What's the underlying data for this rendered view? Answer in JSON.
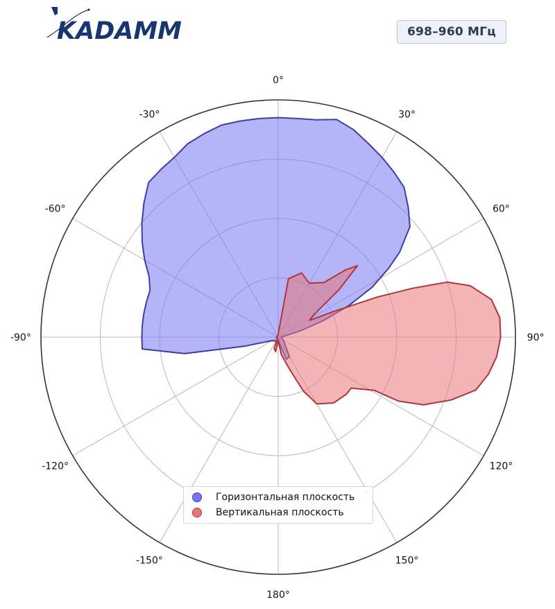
{
  "brand": {
    "logo_text": "KADAMM",
    "color": "#17356f"
  },
  "header": {
    "frequency_label": "698–960 МГц"
  },
  "chart_data": {
    "type": "polar",
    "angle_zero": "top",
    "angle_direction": "clockwise",
    "angle_ticks": [
      0,
      30,
      60,
      90,
      120,
      150,
      180,
      -150,
      -120,
      -90,
      -60,
      -30
    ],
    "angle_tick_labels": [
      "0°",
      "30°",
      "60°",
      "90°",
      "120°",
      "150°",
      "180°",
      "-150°",
      "-120°",
      "-90°",
      "-60°",
      "-30°"
    ],
    "r_range": [
      0,
      4
    ],
    "r_gridlines": [
      1,
      2,
      3
    ],
    "grid": true,
    "legend_position": "bottom-center",
    "series": [
      {
        "name": "Горизонтальная плоскость",
        "color": "#7777ee",
        "stroke": "#3d3da8",
        "points": [
          [
            -180,
            0.05
          ],
          [
            -150,
            0.08
          ],
          [
            -120,
            0.12
          ],
          [
            -105,
            0.6
          ],
          [
            -100,
            1.6
          ],
          [
            -95,
            2.3
          ],
          [
            -90,
            2.3
          ],
          [
            -85,
            2.3
          ],
          [
            -80,
            2.3
          ],
          [
            -75,
            2.3
          ],
          [
            -70,
            2.3
          ],
          [
            -65,
            2.4
          ],
          [
            -60,
            2.6
          ],
          [
            -55,
            2.8
          ],
          [
            -50,
            3.0
          ],
          [
            -45,
            3.2
          ],
          [
            -40,
            3.4
          ],
          [
            -35,
            3.45
          ],
          [
            -30,
            3.5
          ],
          [
            -25,
            3.6
          ],
          [
            -20,
            3.65
          ],
          [
            -15,
            3.7
          ],
          [
            -10,
            3.7
          ],
          [
            -5,
            3.7
          ],
          [
            0,
            3.7
          ],
          [
            5,
            3.7
          ],
          [
            10,
            3.72
          ],
          [
            15,
            3.8
          ],
          [
            20,
            3.72
          ],
          [
            25,
            3.6
          ],
          [
            30,
            3.5
          ],
          [
            35,
            3.4
          ],
          [
            40,
            3.3
          ],
          [
            45,
            3.1
          ],
          [
            50,
            2.9
          ],
          [
            55,
            2.5
          ],
          [
            58,
            2.2
          ],
          [
            62,
            1.8
          ],
          [
            66,
            1.3
          ],
          [
            70,
            0.8
          ],
          [
            74,
            0.4
          ],
          [
            78,
            0.15
          ],
          [
            90,
            0.05
          ],
          [
            120,
            0.1
          ],
          [
            150,
            0.38
          ],
          [
            160,
            0.4
          ],
          [
            170,
            0.1
          ],
          [
            180,
            0.05
          ]
        ]
      },
      {
        "name": "Вертикальная плоскость",
        "color": "#e8767c",
        "stroke": "#b0343c",
        "points": [
          [
            -180,
            0.05
          ],
          [
            -170,
            0.25
          ],
          [
            -160,
            0.2
          ],
          [
            -150,
            0.02
          ],
          [
            -90,
            0.03
          ],
          [
            -30,
            0.02
          ],
          [
            0,
            0.05
          ],
          [
            10,
            1.0
          ],
          [
            20,
            1.15
          ],
          [
            30,
            1.05
          ],
          [
            40,
            1.2
          ],
          [
            45,
            1.6
          ],
          [
            48,
            1.8
          ],
          [
            52,
            1.3
          ],
          [
            58,
            0.7
          ],
          [
            62,
            0.6
          ],
          [
            65,
            1.0
          ],
          [
            68,
            1.8
          ],
          [
            70,
            2.4
          ],
          [
            72,
            3.0
          ],
          [
            75,
            3.35
          ],
          [
            80,
            3.65
          ],
          [
            85,
            3.75
          ],
          [
            90,
            3.75
          ],
          [
            95,
            3.7
          ],
          [
            100,
            3.6
          ],
          [
            105,
            3.45
          ],
          [
            110,
            3.1
          ],
          [
            115,
            2.7
          ],
          [
            118,
            2.3
          ],
          [
            119,
            1.85
          ],
          [
            125,
            1.5
          ],
          [
            130,
            1.5
          ],
          [
            140,
            1.45
          ],
          [
            150,
            1.3
          ],
          [
            155,
            1.0
          ],
          [
            160,
            0.6
          ],
          [
            170,
            0.3
          ],
          [
            180,
            0.05
          ]
        ]
      }
    ]
  },
  "legend": {
    "items": [
      {
        "label": "Горизонтальная плоскость",
        "color": "#7777ee",
        "stroke": "#3d3da8"
      },
      {
        "label": "Вертикальная плоскость",
        "color": "#e8767c",
        "stroke": "#b0343c"
      }
    ]
  }
}
